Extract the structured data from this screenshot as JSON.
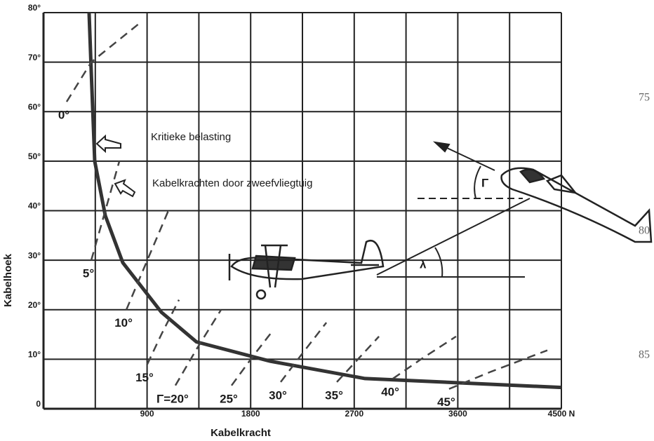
{
  "chart_data": {
    "type": "line",
    "xlabel": "Kabelkracht",
    "ylabel": "Kabelhoek",
    "xlim": [
      0,
      4500
    ],
    "ylim": [
      0,
      80
    ],
    "xticks": [
      900,
      1800,
      2700,
      3600,
      {
        "value": 4500,
        "label": "4500 N"
      }
    ],
    "xminorticks": [
      450,
      1350,
      2250,
      3150,
      4050
    ],
    "yticks": [
      0,
      {
        "value": 10,
        "label": "10°"
      },
      {
        "value": 20,
        "label": "20°"
      },
      {
        "value": 30,
        "label": "30°"
      },
      {
        "value": 40,
        "label": "40°"
      },
      {
        "value": 50,
        "label": "50°"
      },
      {
        "value": 60,
        "label": "60°"
      },
      {
        "value": 70,
        "label": "70°"
      },
      {
        "value": 80,
        "label": "80°"
      }
    ],
    "grid": true,
    "series": [
      {
        "name": "Kritieke belasting",
        "color": "#333333",
        "dash": false,
        "x": [
          396,
          415,
          445,
          537,
          689,
          1024,
          1329,
          1970,
          2793,
          4500
        ],
        "values": [
          80,
          68,
          50,
          39,
          29.5,
          19.5,
          13.5,
          9.6,
          6.1,
          4.3
        ]
      },
      {
        "name": "0°",
        "color": "#444444",
        "dash": true,
        "x": [
          201,
          415,
          842
        ],
        "values": [
          62,
          70,
          78
        ]
      },
      {
        "name": "5°",
        "color": "#444444",
        "dash": true,
        "x": [
          415,
          537,
          659
        ],
        "values": [
          30,
          40,
          50
        ]
      },
      {
        "name": "10°",
        "color": "#444444",
        "dash": true,
        "x": [
          720,
          902,
          1085
        ],
        "values": [
          20,
          30,
          40
        ]
      },
      {
        "name": "15°",
        "color": "#444444",
        "dash": true,
        "x": [
          902,
          1024,
          1177
        ],
        "values": [
          9,
          15,
          22
        ]
      },
      {
        "name": "Γ=20°",
        "color": "#444444",
        "dash": true,
        "x": [
          1146,
          1329,
          1543
        ],
        "values": [
          4.7,
          12,
          20
        ]
      },
      {
        "name": "25°",
        "color": "#444444",
        "dash": true,
        "x": [
          1634,
          1817,
          2000
        ],
        "values": [
          4.7,
          10.5,
          16
        ]
      },
      {
        "name": "30°",
        "color": "#444444",
        "dash": true,
        "x": [
          2061,
          2244,
          2458
        ],
        "values": [
          5.4,
          11,
          17.4
        ]
      },
      {
        "name": "35°",
        "color": "#444444",
        "dash": true,
        "x": [
          2549,
          2732,
          2915
        ],
        "values": [
          5.4,
          10,
          14.6
        ]
      },
      {
        "name": "40°",
        "color": "#444444",
        "dash": true,
        "x": [
          3037,
          3280,
          3585
        ],
        "values": [
          6.1,
          10,
          14.6
        ]
      },
      {
        "name": "45°",
        "color": "#444444",
        "dash": true,
        "x": [
          3524,
          3890,
          4378
        ],
        "values": [
          4,
          7.5,
          11.8
        ]
      }
    ],
    "annotations": [
      "Kabelkrachten door zweefvliegtuig",
      "Γ",
      "λ"
    ],
    "margin_numbers": [
      "75",
      "80",
      "85"
    ]
  }
}
